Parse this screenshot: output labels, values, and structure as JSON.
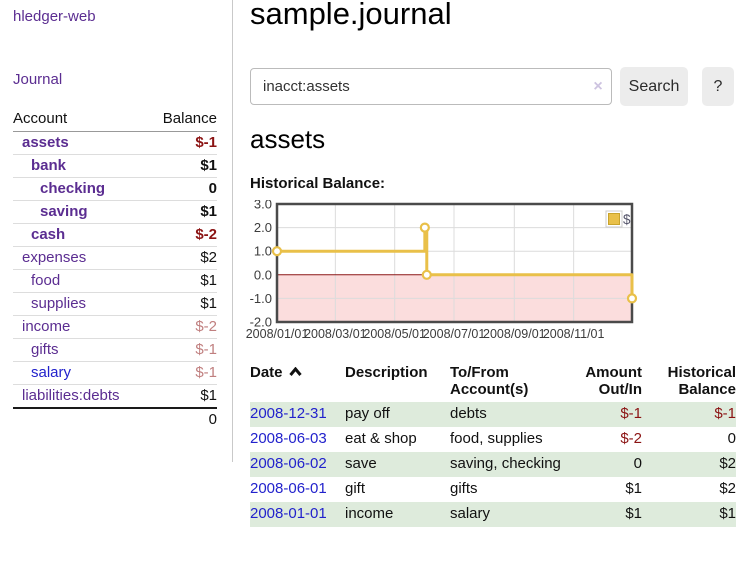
{
  "app": {
    "title": "hledger-web"
  },
  "colors": {
    "link_purple": "#5b2d91",
    "link_blue": "#2222cc",
    "negative_strong": "#8b1313",
    "negative_soft": "#c07f7f",
    "row_green": "#deebdc",
    "chart_line": "#e9c049",
    "chart_zero_line": "#8c1717",
    "chart_negative_region": "#fbdddd",
    "chart_border": "#4a4a4a",
    "grid_line": "#dcdcdc"
  },
  "sidebar": {
    "journal_link": "Journal",
    "table": {
      "headers": {
        "account": "Account",
        "balance": "Balance"
      },
      "rows": [
        {
          "account": "assets",
          "balance": "$-1",
          "indent": 1,
          "bold": true,
          "bal_class": "neg-strong",
          "link_class": ""
        },
        {
          "account": "bank",
          "balance": "$1",
          "indent": 2,
          "bold": true,
          "bal_class": "pos",
          "link_class": ""
        },
        {
          "account": "checking",
          "balance": "0",
          "indent": 3,
          "bold": true,
          "bal_class": "pos",
          "link_class": ""
        },
        {
          "account": "saving",
          "balance": "$1",
          "indent": 3,
          "bold": true,
          "bal_class": "pos",
          "link_class": ""
        },
        {
          "account": "cash",
          "balance": "$-2",
          "indent": 2,
          "bold": true,
          "bal_class": "neg-strong",
          "link_class": ""
        },
        {
          "account": "expenses",
          "balance": "$2",
          "indent": 1,
          "bold": false,
          "bal_class": "pos",
          "link_class": ""
        },
        {
          "account": "food",
          "balance": "$1",
          "indent": 2,
          "bold": false,
          "bal_class": "pos",
          "link_class": ""
        },
        {
          "account": "supplies",
          "balance": "$1",
          "indent": 2,
          "bold": false,
          "bal_class": "pos",
          "link_class": ""
        },
        {
          "account": "income",
          "balance": "$-2",
          "indent": 1,
          "bold": false,
          "bal_class": "neg-soft",
          "link_class": ""
        },
        {
          "account": "gifts",
          "balance": "$-1",
          "indent": 2,
          "bold": false,
          "bal_class": "neg-soft",
          "link_class": ""
        },
        {
          "account": "salary",
          "balance": "$-1",
          "indent": 2,
          "bold": false,
          "bal_class": "neg-soft",
          "link_class": "blue"
        },
        {
          "account": "liabilities:debts",
          "balance": "$1",
          "indent": 1,
          "bold": false,
          "bal_class": "pos",
          "link_class": ""
        }
      ],
      "total": "0"
    }
  },
  "main": {
    "title": "sample.journal",
    "search": {
      "value": "inacct:assets",
      "clear_icon": "×",
      "button_label": "Search",
      "help_label": "?"
    },
    "account_heading": "assets",
    "chart_label": "Historical Balance:",
    "transactions": {
      "headers": [
        "Date",
        "Description",
        "To/From Account(s)",
        "Amount Out/In",
        "Historical Balance"
      ],
      "rows": [
        {
          "date": "2008-12-31",
          "description": "pay off",
          "accounts": "debts",
          "amount": "$-1",
          "amount_neg": true,
          "balance": "$-1",
          "balance_neg": true,
          "shaded": true
        },
        {
          "date": "2008-06-03",
          "description": "eat & shop",
          "accounts": "food, supplies",
          "amount": "$-2",
          "amount_neg": true,
          "balance": "0",
          "balance_neg": false,
          "shaded": false
        },
        {
          "date": "2008-06-02",
          "description": "save",
          "accounts": "saving, checking",
          "amount": "0",
          "amount_neg": false,
          "balance": "$2",
          "balance_neg": false,
          "shaded": true
        },
        {
          "date": "2008-06-01",
          "description": "gift",
          "accounts": "gifts",
          "amount": "$1",
          "amount_neg": false,
          "balance": "$2",
          "balance_neg": false,
          "shaded": false
        },
        {
          "date": "2008-01-01",
          "description": "income",
          "accounts": "salary",
          "amount": "$1",
          "amount_neg": false,
          "balance": "$1",
          "balance_neg": false,
          "shaded": true
        }
      ]
    }
  },
  "chart_data": {
    "type": "line",
    "style": "step",
    "title": "Historical Balance",
    "legend": [
      {
        "label": "$",
        "color": "#e9c049"
      }
    ],
    "legend_position": "top-right",
    "grid": true,
    "ylim": [
      -2,
      3
    ],
    "xlim_days": [
      0,
      365
    ],
    "y_ticks": [
      {
        "label": "3.0",
        "value": 3
      },
      {
        "label": "2.0",
        "value": 2
      },
      {
        "label": "1.0",
        "value": 1
      },
      {
        "label": "0.0",
        "value": 0
      },
      {
        "label": "-1.0",
        "value": -1
      },
      {
        "label": "-2.0",
        "value": -2
      }
    ],
    "x_ticks": [
      {
        "label": "2008/01/01",
        "day": 0
      },
      {
        "label": "2008/03/01",
        "day": 60
      },
      {
        "label": "2008/05/01",
        "day": 121
      },
      {
        "label": "2008/07/01",
        "day": 182
      },
      {
        "label": "2008/09/01",
        "day": 244
      },
      {
        "label": "2008/11/01",
        "day": 305
      }
    ],
    "series": [
      {
        "name": "$",
        "points": [
          {
            "date": "2008-01-01",
            "day": 0,
            "value": 1,
            "marker": true
          },
          {
            "date": "2008-06-01",
            "day": 152,
            "value": 2,
            "marker": true
          },
          {
            "date": "2008-06-02",
            "day": 153,
            "value": 2,
            "marker": false
          },
          {
            "date": "2008-06-03",
            "day": 154,
            "value": 0,
            "marker": true
          },
          {
            "date": "2008-12-31",
            "day": 365,
            "value": -1,
            "marker": true
          }
        ]
      }
    ],
    "negative_region": {
      "from": 0,
      "to": -2
    },
    "zero_line_value": 0
  }
}
